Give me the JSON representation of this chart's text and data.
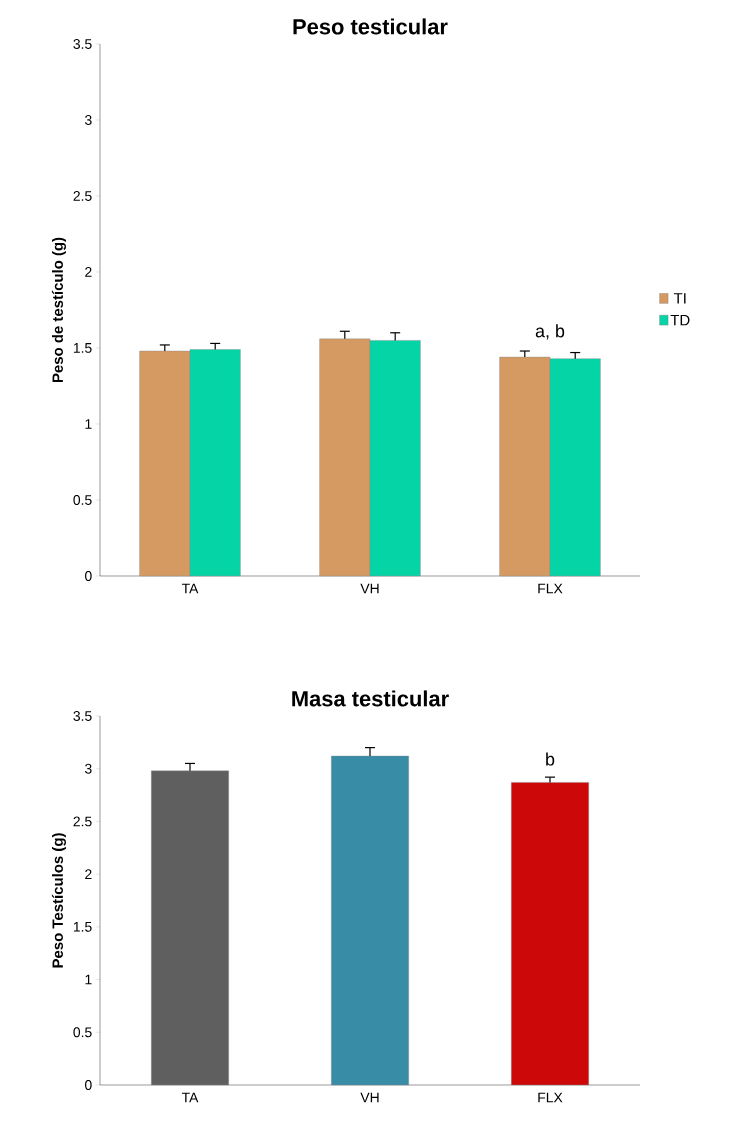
{
  "chart_data": [
    {
      "type": "bar",
      "title": "Peso testicular",
      "ylabel": "Peso de testículo (g)",
      "categories": [
        "TA",
        "VH",
        "FLX"
      ],
      "series": [
        {
          "name": "TI",
          "color": "#d49a62",
          "values": [
            1.48,
            1.56,
            1.44
          ],
          "errors": [
            0.04,
            0.05,
            0.04
          ]
        },
        {
          "name": "TD",
          "color": "#05d4a6",
          "values": [
            1.49,
            1.55,
            1.43
          ],
          "errors": [
            0.04,
            0.05,
            0.04
          ]
        }
      ],
      "ylim": [
        0,
        3.5
      ],
      "yticks": [
        0,
        0.5,
        1,
        1.5,
        2,
        2.5,
        3,
        3.5
      ],
      "legend": "right",
      "annotations": [
        "a, b"
      ]
    },
    {
      "type": "bar",
      "title": "Masa testicular",
      "ylabel": "Peso Testículos (g)",
      "categories": [
        "TA",
        "VH",
        "FLX"
      ],
      "values": [
        2.98,
        3.12,
        2.87
      ],
      "errors": [
        0.07,
        0.08,
        0.05
      ],
      "colors": [
        "#5f5f5f",
        "#388ca6",
        "#cc0808"
      ],
      "ylim": [
        0,
        3.5
      ],
      "yticks": [
        0,
        0.5,
        1,
        1.5,
        2,
        2.5,
        3,
        3.5
      ],
      "annotations": [
        "b"
      ]
    }
  ]
}
